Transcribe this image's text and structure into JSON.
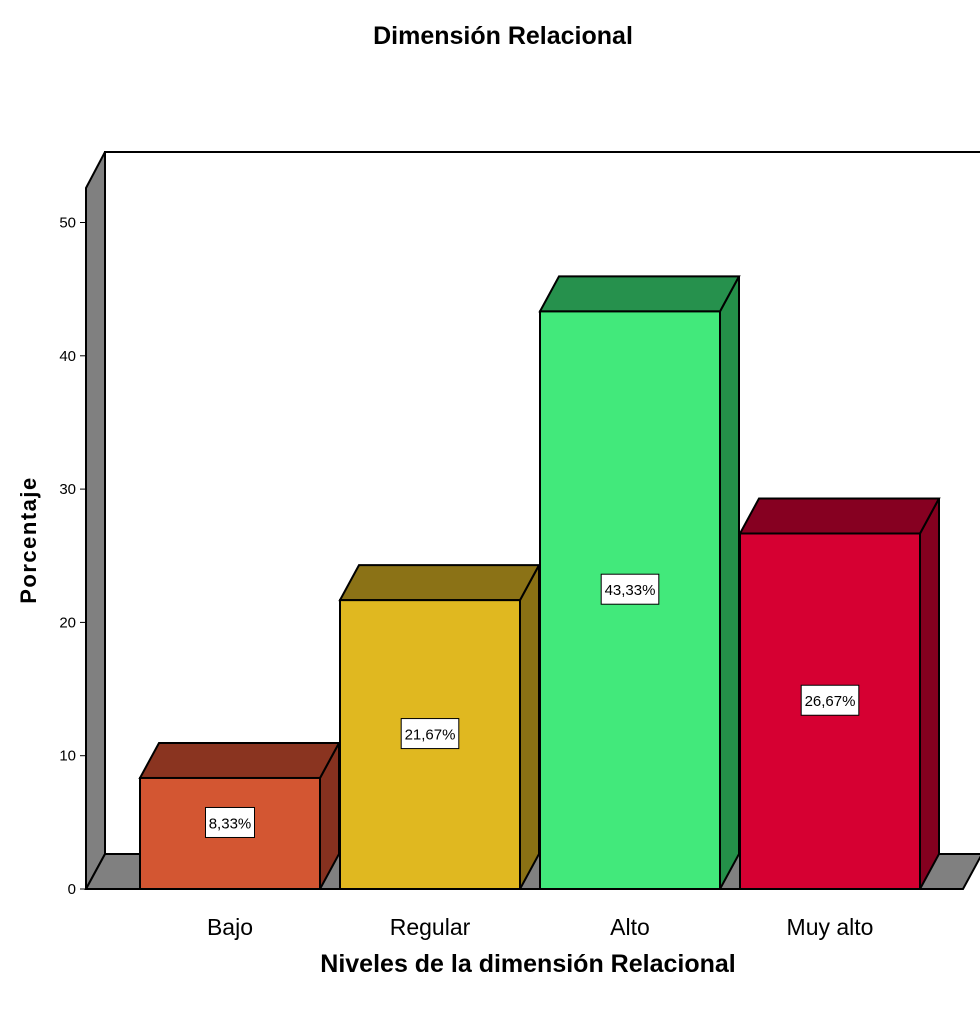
{
  "chart_data": {
    "type": "bar",
    "title": "Dimensión Relacional",
    "xlabel": "Niveles de la dimensión Relacional",
    "ylabel": "Porcentaje",
    "ylim": [
      0,
      55
    ],
    "yticks": [
      "0",
      "10",
      "20",
      "30",
      "40",
      "50"
    ],
    "categories": [
      "Bajo",
      "Regular",
      "Alto",
      "Muy alto"
    ],
    "values": [
      8.33,
      21.67,
      43.33,
      26.67
    ],
    "data_labels": [
      "8,33%",
      "21,67%",
      "43,33%",
      "26,67%"
    ],
    "colors": [
      {
        "front": "#d35632",
        "top": "#8a3420",
        "side": "#86311f"
      },
      {
        "front": "#e0b820",
        "top": "#8b7216",
        "side": "#8a7114"
      },
      {
        "front": "#42e97b",
        "top": "#26914d",
        "side": "#249049"
      },
      {
        "front": "#d60032",
        "top": "#860021",
        "side": "#84001f"
      }
    ],
    "grid": false,
    "legend": "none",
    "style": "3d"
  }
}
